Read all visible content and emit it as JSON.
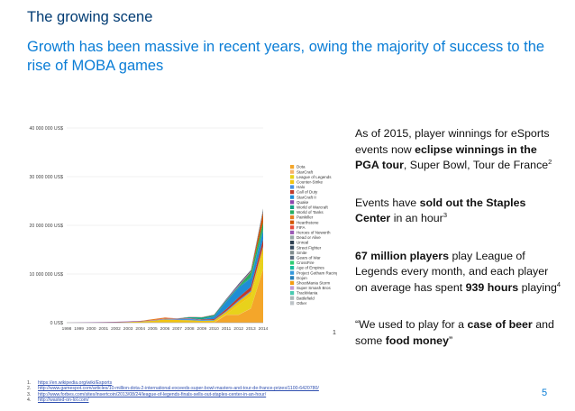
{
  "slide": {
    "title": "The growing scene",
    "subtitle": "Growth has been massive in recent years, owing the majority of success to the rise of MOBA games",
    "page_number": "5",
    "chart_marker": "1"
  },
  "bullets": [
    {
      "parts": [
        {
          "t": "As of 2015, player winnings for eSports events now "
        },
        {
          "t": "eclipse winnings in the PGA tour",
          "b": true
        },
        {
          "t": ", Super Bowl, Tour de France"
        },
        {
          "t": "2",
          "sup": true
        }
      ]
    },
    {
      "parts": [
        {
          "t": "Events have "
        },
        {
          "t": "sold out the Staples Center",
          "b": true
        },
        {
          "t": " in an hour"
        },
        {
          "t": "3",
          "sup": true
        }
      ]
    },
    {
      "parts": [
        {
          "t": "67 million players",
          "b": true
        },
        {
          "t": " play League of Legends every month, and each player on average has spent "
        },
        {
          "t": "939 hours",
          "b": true
        },
        {
          "t": " playing"
        },
        {
          "t": "4",
          "sup": true
        }
      ]
    },
    {
      "parts": [
        {
          "t": "“We used to play for a "
        },
        {
          "t": "case of beer",
          "b": true
        },
        {
          "t": " and some "
        },
        {
          "t": "food money",
          "b": true
        },
        {
          "t": "”"
        }
      ]
    }
  ],
  "footnotes": [
    {
      "num": "1.",
      "text": "https://en.wikipedia.org/wiki/Esports"
    },
    {
      "num": "2.",
      "text": "http://www.gamespot.com/articles/10-million-dota-2-international-exceeds-super-bowl-masters-and-tour-de-france-prizes/1100-6420780/"
    },
    {
      "num": "3.",
      "text": "http://www.forbes.com/sites/insertcoin/2013/08/24/league-of-legends-finals-sells-out-staples-center-in-an-hour/"
    },
    {
      "num": "4.",
      "text": "http://wasted-on-lol.com/"
    }
  ],
  "chart_data": {
    "type": "area",
    "stacked": true,
    "title": "",
    "xlabel": "",
    "ylabel": "",
    "x": [
      "1998",
      "1999",
      "2000",
      "2001",
      "2002",
      "2003",
      "2004",
      "2005",
      "2006",
      "2007",
      "2008",
      "2009",
      "2010",
      "2011",
      "2012",
      "2013",
      "2014"
    ],
    "ylim": [
      0,
      40000000
    ],
    "yticks": [
      0,
      10000000,
      20000000,
      30000000,
      40000000
    ],
    "ytick_labels": [
      "0 US$",
      "10 000 000 US$",
      "20 000 000 US$",
      "30 000 000 US$",
      "40 000 000 US$"
    ],
    "grid": true,
    "legend_position": "right",
    "series": [
      {
        "name": "Dota",
        "color": "#f4a62a",
        "values": [
          0,
          0,
          0,
          0,
          0,
          0,
          0,
          0,
          0,
          0,
          0,
          0,
          0,
          1600000,
          1600000,
          2900000,
          11000000
        ]
      },
      {
        "name": "StarCraft",
        "color": "#f6b26b",
        "values": [
          0,
          0,
          0,
          0,
          0,
          0,
          0,
          50000,
          50000,
          50000,
          50000,
          50000,
          50000,
          50000,
          50000,
          50000,
          50000
        ]
      },
      {
        "name": "League of Legends",
        "color": "#e8d21b",
        "values": [
          0,
          0,
          0,
          0,
          0,
          0,
          0,
          0,
          0,
          0,
          0,
          0,
          0,
          100000,
          2000000,
          2500000,
          3000000
        ]
      },
      {
        "name": "Counter-Strike",
        "color": "#f1c40f",
        "values": [
          0,
          0,
          0,
          40000,
          80000,
          150000,
          250000,
          350000,
          600000,
          500000,
          450000,
          350000,
          400000,
          500000,
          700000,
          900000,
          1500000
        ]
      },
      {
        "name": "Halo",
        "color": "#4a90e2",
        "values": [
          0,
          0,
          0,
          0,
          0,
          0,
          10000,
          50000,
          100000,
          150000,
          300000,
          150000,
          100000,
          150000,
          250000,
          200000,
          200000
        ]
      },
      {
        "name": "Call of Duty",
        "color": "#c0392b",
        "values": [
          0,
          0,
          0,
          0,
          0,
          0,
          0,
          20000,
          40000,
          60000,
          80000,
          100000,
          200000,
          400000,
          600000,
          800000,
          1400000
        ]
      },
      {
        "name": "StarCraft II",
        "color": "#1f8dd6",
        "values": [
          0,
          0,
          0,
          0,
          0,
          0,
          0,
          0,
          0,
          0,
          0,
          0,
          500000,
          1500000,
          2000000,
          1800000,
          1800000
        ]
      },
      {
        "name": "Quake",
        "color": "#8e44ad",
        "values": [
          0,
          50000,
          100000,
          100000,
          100000,
          100000,
          100000,
          50000,
          50000,
          50000,
          50000,
          30000,
          30000,
          20000,
          10000,
          10000,
          10000
        ]
      },
      {
        "name": "World of Warcraft",
        "color": "#16a085",
        "values": [
          0,
          0,
          0,
          0,
          0,
          0,
          0,
          0,
          0,
          50000,
          200000,
          400000,
          300000,
          300000,
          200000,
          200000,
          200000
        ]
      },
      {
        "name": "World of Tanks",
        "color": "#27ae60",
        "values": [
          0,
          0,
          0,
          0,
          0,
          0,
          0,
          0,
          0,
          0,
          0,
          0,
          0,
          0,
          100000,
          1000000,
          1500000
        ]
      },
      {
        "name": "Painkiller",
        "color": "#e67e22",
        "values": [
          0,
          0,
          0,
          0,
          0,
          0,
          0,
          200000,
          200000,
          0,
          0,
          0,
          0,
          0,
          0,
          0,
          0
        ]
      },
      {
        "name": "Hearthstone",
        "color": "#d35400",
        "values": [
          0,
          0,
          0,
          0,
          0,
          0,
          0,
          0,
          0,
          0,
          0,
          0,
          0,
          0,
          0,
          100000,
          2000000
        ]
      },
      {
        "name": "FIFA",
        "color": "#e74c3c",
        "values": [
          0,
          0,
          0,
          0,
          0,
          0,
          0,
          0,
          20000,
          30000,
          60000,
          60000,
          60000,
          60000,
          60000,
          60000,
          60000
        ]
      },
      {
        "name": "Heroes of Newerth",
        "color": "#9b59b6",
        "values": [
          0,
          0,
          0,
          0,
          0,
          0,
          0,
          0,
          0,
          0,
          0,
          0,
          0,
          100000,
          200000,
          100000,
          50000
        ]
      },
      {
        "name": "Dead or Alive",
        "color": "#95a5a6",
        "values": [
          0,
          0,
          0,
          0,
          0,
          0,
          0,
          0,
          0,
          0,
          0,
          0,
          0,
          0,
          0,
          0,
          0
        ]
      },
      {
        "name": "Unreal",
        "color": "#2c3e50",
        "values": [
          0,
          0,
          0,
          0,
          0,
          0,
          0,
          0,
          0,
          0,
          0,
          0,
          0,
          0,
          0,
          0,
          0
        ]
      },
      {
        "name": "Street Fighter",
        "color": "#34495e",
        "values": [
          0,
          0,
          0,
          0,
          0,
          0,
          0,
          0,
          0,
          0,
          0,
          0,
          0,
          100000,
          200000,
          200000,
          300000
        ]
      },
      {
        "name": "Smite",
        "color": "#7f8c8d",
        "values": [
          0,
          0,
          0,
          0,
          0,
          0,
          0,
          0,
          0,
          0,
          0,
          0,
          0,
          0,
          0,
          0,
          400000
        ]
      },
      {
        "name": "Gears of War",
        "color": "#5d6d7e",
        "values": [
          0,
          0,
          0,
          0,
          0,
          0,
          0,
          0,
          0,
          0,
          0,
          0,
          0,
          0,
          0,
          0,
          0
        ]
      },
      {
        "name": "CrossFire",
        "color": "#2ecc71",
        "values": [
          0,
          0,
          0,
          0,
          0,
          0,
          0,
          0,
          0,
          0,
          0,
          0,
          0,
          0,
          0,
          0,
          0
        ]
      },
      {
        "name": "Age of Empires",
        "color": "#1abc9c",
        "values": [
          0,
          0,
          0,
          0,
          0,
          0,
          0,
          0,
          0,
          0,
          0,
          0,
          0,
          0,
          0,
          0,
          0
        ]
      },
      {
        "name": "Project Gotham Racing",
        "color": "#3498db",
        "values": [
          0,
          0,
          0,
          0,
          0,
          0,
          0,
          0,
          0,
          0,
          0,
          0,
          0,
          0,
          0,
          0,
          0
        ]
      },
      {
        "name": "Dojon",
        "color": "#2980b9",
        "values": [
          0,
          0,
          0,
          0,
          0,
          0,
          0,
          0,
          0,
          0,
          0,
          0,
          0,
          0,
          0,
          0,
          0
        ]
      },
      {
        "name": "ShootMania Storm",
        "color": "#f39c12",
        "values": [
          0,
          0,
          0,
          0,
          0,
          0,
          0,
          0,
          0,
          0,
          0,
          0,
          0,
          0,
          0,
          0,
          0
        ]
      },
      {
        "name": "Super Smash Bros",
        "color": "#c39bd3",
        "values": [
          0,
          0,
          0,
          0,
          0,
          0,
          0,
          0,
          0,
          0,
          0,
          0,
          0,
          0,
          0,
          0,
          0
        ]
      },
      {
        "name": "TrackMania",
        "color": "#48c9b0",
        "values": [
          0,
          0,
          0,
          0,
          0,
          0,
          0,
          0,
          0,
          0,
          0,
          0,
          0,
          0,
          0,
          0,
          0
        ]
      },
      {
        "name": "Battlefield",
        "color": "#aab7b8",
        "values": [
          0,
          0,
          0,
          0,
          0,
          0,
          0,
          0,
          0,
          0,
          0,
          0,
          0,
          0,
          0,
          0,
          0
        ]
      },
      {
        "name": "Other",
        "color": "#bdc3c7",
        "values": [
          0,
          0,
          0,
          0,
          0,
          0,
          0,
          0,
          0,
          0,
          0,
          0,
          0,
          0,
          0,
          0,
          0
        ]
      }
    ]
  }
}
